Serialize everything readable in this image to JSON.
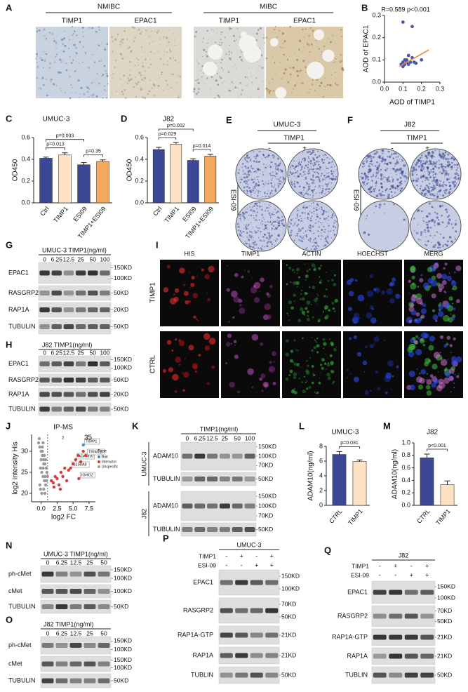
{
  "panel_labels": [
    "A",
    "B",
    "C",
    "D",
    "E",
    "F",
    "G",
    "H",
    "I",
    "J",
    "K",
    "L",
    "M",
    "N",
    "O",
    "P",
    "Q"
  ],
  "chart_data": [
    {
      "type": "scatter",
      "annotation": "R=0.589 p<0.001",
      "xlabel": "AOD of TIMP1",
      "ylabel": "AOD of EPAC1",
      "x": [
        0.1,
        0.15,
        0.13,
        0.15,
        0.12,
        0.1,
        0.11,
        0.09,
        0.1,
        0.12,
        0.14,
        0.16,
        0.13,
        0.17,
        0.11,
        0.2
      ],
      "y": [
        0.27,
        0.25,
        0.12,
        0.11,
        0.1,
        0.09,
        0.08,
        0.08,
        0.07,
        0.09,
        0.09,
        0.09,
        0.08,
        0.085,
        0.1,
        0.1
      ],
      "color": "#4a5aa8",
      "trendline": {
        "x": [
          0.08,
          0.24
        ],
        "y": [
          0.07,
          0.145
        ],
        "color": "#e8863a"
      },
      "xlim": [
        0,
        0.3
      ],
      "ylim": [
        0,
        0.3
      ],
      "xticks": [
        {
          "value": 0,
          "label": "0.0"
        },
        0.1,
        0.2,
        0.3
      ],
      "yticks": [
        {
          "value": 0,
          "label": "0.0"
        },
        0.1,
        0.2,
        0.3
      ]
    },
    {
      "type": "bar",
      "title": "UMUC-3",
      "ylabel": "OD450",
      "categories": [
        "Ctrl",
        "TIMP1",
        "ESI09",
        "TIMP1+ESI09"
      ],
      "values": [
        0.41,
        0.44,
        0.35,
        0.38
      ],
      "errors": [
        0.01,
        0.02,
        0.02,
        0.015
      ],
      "colors": [
        "#3c4796",
        "#fde3c4",
        "#3c4796",
        "#f3a85c"
      ],
      "ylim": [
        0,
        0.6
      ],
      "yticks": [
        {
          "value": 0,
          "label": "0.0"
        },
        0.2,
        0.4,
        0.6
      ],
      "comparisons": [
        {
          "label": "p=0.003",
          "pair": [
            "Ctrl",
            "ESI09"
          ]
        },
        {
          "label": "p=0.013",
          "pair": [
            "Ctrl",
            "TIMP1"
          ]
        },
        {
          "label": "p=0.35",
          "pair": [
            "ESI09",
            "TIMP1+ESI09"
          ]
        }
      ]
    },
    {
      "type": "bar",
      "title": "J82",
      "ylabel": "OD450",
      "categories": [
        "Ctrl",
        "TIMP1",
        "ESI09",
        "TIMP1+ESI09"
      ],
      "values": [
        0.49,
        0.54,
        0.39,
        0.43
      ],
      "errors": [
        0.02,
        0.015,
        0.015,
        0.015
      ],
      "colors": [
        "#3c4796",
        "#fde3c4",
        "#3c4796",
        "#f3a85c"
      ],
      "ylim": [
        0,
        0.6
      ],
      "yticks": [
        {
          "value": 0,
          "label": "0.0"
        },
        0.2,
        0.4,
        0.6
      ],
      "comparisons": [
        {
          "label": "p=0.002",
          "pair": [
            "Ctrl",
            "ESI09"
          ]
        },
        {
          "label": "p=0.029",
          "pair": [
            "Ctrl",
            "TIMP1"
          ]
        },
        {
          "label": "p=0.014",
          "pair": [
            "ESI09",
            "TIMP1+ESI09"
          ]
        }
      ]
    },
    {
      "type": "scatter",
      "title": "IP-MS",
      "xlabel": "log2 FC",
      "ylabel": "log2 intensity His",
      "legend_title": "Type",
      "annotations": [
        "2",
        "35"
      ],
      "vline": 1,
      "xlim": [
        -1.5,
        8.5
      ],
      "ylim": [
        18,
        34
      ],
      "xticks": [
        {
          "value": 0,
          "label": "0.0"
        },
        2.5,
        {
          "value": 5,
          "label": "5.0"
        },
        7.5
      ],
      "yticks": [
        20,
        25,
        30
      ],
      "series": [
        {
          "name": "Bait",
          "color": "#3a8fd6",
          "x": [
            6.6
          ],
          "y": [
            31.5
          ],
          "labels": [
            "TIMP1"
          ]
        },
        {
          "name": "Interactor",
          "color": "#d73a3a",
          "x": [
            1.6,
            1.9,
            2.2,
            2.5,
            2.8,
            3.1,
            3.4,
            3.7,
            4.0,
            4.3,
            4.6,
            5.0,
            5.4,
            5.8,
            6.2,
            6.6,
            7.0,
            2.0,
            3.0,
            5.9
          ],
          "y": [
            23,
            22.5,
            24,
            23.5,
            22,
            25,
            24,
            26,
            23,
            25.5,
            26,
            27,
            28,
            29,
            27.5,
            30,
            29,
            21.5,
            21,
            23.5
          ],
          "labels": [
            null,
            null,
            null,
            null,
            null,
            null,
            null,
            null,
            null,
            null,
            "S100A8",
            null,
            "ADAM10",
            null,
            null,
            null,
            "TRIM21",
            null,
            null,
            "IGHG2"
          ]
        },
        {
          "name": "Unspecific",
          "color": "#9a9a9a",
          "x": [
            -0.4,
            -0.2,
            0,
            0.2,
            0.4,
            0.6,
            0.8,
            -0.3,
            0.1,
            0.3,
            0.5,
            0.7,
            -0.1,
            0.2,
            0.4,
            0.9,
            0,
            0.3,
            0.6,
            -0.2,
            0.1,
            0.5,
            0.8,
            0.2,
            0.4,
            -0.1,
            0.7,
            0.3,
            1.0,
            0.6
          ],
          "y": [
            32,
            31,
            30,
            29,
            28,
            27,
            26,
            33,
            25,
            24,
            23,
            22,
            21,
            30,
            27,
            25,
            28,
            26,
            24,
            22,
            20,
            29,
            23,
            31,
            21,
            26,
            28,
            32,
            24,
            20
          ]
        }
      ]
    },
    {
      "type": "bar",
      "title": "UMUC-3",
      "ylabel": "ADAM10(ng/ml)",
      "categories": [
        "CTRL",
        "TIMP1"
      ],
      "values": [
        6.9,
        5.95
      ],
      "errors": [
        0.4,
        0.2
      ],
      "colors": [
        "#3c4796",
        "#fde3c4"
      ],
      "ylim": [
        0,
        8
      ],
      "yticks": [
        0,
        2,
        4,
        6,
        8
      ],
      "comparisons": [
        {
          "label": "p=0.031",
          "pair": [
            "CTRL",
            "TIMP1"
          ]
        }
      ]
    },
    {
      "type": "bar",
      "title": "J82",
      "ylabel": "ADAM10(ng/ml)",
      "categories": [
        "CTRL",
        "TIMP1"
      ],
      "values": [
        0.76,
        0.33
      ],
      "errors": [
        0.06,
        0.06
      ],
      "colors": [
        "#3c4796",
        "#fde3c4"
      ],
      "ylim": [
        0,
        1
      ],
      "yticks": [
        {
          "value": 0,
          "label": "0.0"
        },
        0.2,
        0.4,
        0.6,
        0.8,
        {
          "value": 1,
          "label": "1.0"
        }
      ],
      "comparisons": [
        {
          "label": "p<0.001",
          "pair": [
            "CTRL",
            "TIMP1"
          ]
        }
      ]
    }
  ],
  "micrographs": {
    "A": {
      "groups": [
        {
          "name": "NMIBC",
          "columns": [
            "TIMP1",
            "EPAC1"
          ]
        },
        {
          "name": "MIBC",
          "columns": [
            "TIMP1",
            "EPAC1"
          ]
        }
      ]
    },
    "E": {
      "title": "UMUC-3",
      "column_treatment": "TIMP1",
      "column_signs": [
        "-",
        "+"
      ],
      "row_treatment": "ESI-09",
      "row_signs": [
        "-",
        "+"
      ]
    },
    "F": {
      "title": "J82",
      "column_treatment": "TIMP1",
      "column_signs": [
        "-",
        "+"
      ],
      "row_treatment": "ESI-09",
      "row_signs": [
        "-",
        "+"
      ]
    },
    "I": {
      "columns": [
        "HIS",
        "TIMP1",
        "ACTIN",
        "HOECHST",
        "MERG"
      ],
      "rows": [
        "TIMP1",
        "CTRL"
      ]
    }
  },
  "blots": {
    "G": {
      "header": "UMUC-3 TIMP1(ng/ml)",
      "lanes": [
        "0",
        "6.25",
        "12.5",
        "25",
        "50",
        "100"
      ],
      "rows": [
        {
          "name": "EPAC1",
          "markers": [
            "150KD",
            "100KD"
          ]
        },
        {
          "name": "RASGRP2",
          "markers": [
            "50KD"
          ]
        },
        {
          "name": "RAP1A",
          "markers": [
            "20KD"
          ]
        },
        {
          "name": "TUBULIN",
          "markers": [
            "50KD"
          ]
        }
      ]
    },
    "H": {
      "header": "J82 TIMP1(ng/ml)",
      "lanes": [
        "0",
        "6.25",
        "12.5",
        "25",
        "50",
        "100"
      ],
      "rows": [
        {
          "name": "EPAC1",
          "markers": [
            "150KD",
            "100KD"
          ]
        },
        {
          "name": "RASGRP2",
          "markers": [
            "50KD"
          ]
        },
        {
          "name": "RAP1A",
          "markers": [
            "20KD"
          ]
        },
        {
          "name": "TUBULIN",
          "markers": [
            "50KD"
          ]
        }
      ]
    },
    "K": {
      "header": "TIMP1(ng/ml)",
      "lanes": [
        "0",
        "6.25",
        "12.5",
        "25",
        "50",
        "100"
      ],
      "groups": [
        {
          "name": "UMUC-3",
          "rows": [
            {
              "name": "ADAM10",
              "markers": [
                "150KD",
                "100KD",
                "70KD"
              ]
            },
            {
              "name": "TUBULIN",
              "markers": [
                "50KD"
              ]
            }
          ]
        },
        {
          "name": "J82",
          "rows": [
            {
              "name": "ADAM10",
              "markers": [
                "150KD",
                "100KD",
                "70KD"
              ]
            },
            {
              "name": "TUBULIN",
              "markers": [
                "50KD"
              ]
            }
          ]
        }
      ]
    },
    "N": {
      "header": "UMUC-3 TIMP1(ng/ml)",
      "lanes": [
        "0",
        "6.25",
        "12.5",
        "25",
        "50"
      ],
      "rows": [
        {
          "name": "ph-cMet",
          "markers": [
            "150KD",
            "100KD"
          ]
        },
        {
          "name": "cMet",
          "markers": [
            "100KD"
          ]
        },
        {
          "name": "TUBULIN",
          "markers": [
            "50KD"
          ]
        }
      ]
    },
    "O": {
      "header": "J82 TIMP1(ng/ml)",
      "lanes": [
        "0",
        "6.25",
        "12.5",
        "25",
        "50"
      ],
      "rows": [
        {
          "name": "ph-cMet",
          "markers": [
            "150KD",
            "100KD"
          ]
        },
        {
          "name": "cMet",
          "markers": [
            "150KD",
            "100KD"
          ]
        },
        {
          "name": "TUBULIN",
          "markers": [
            "50KD"
          ]
        }
      ]
    },
    "P": {
      "header": "UMUC-3",
      "conditions": [
        {
          "name": "TIMP1",
          "signs": [
            "-",
            "+",
            "-",
            "+"
          ]
        },
        {
          "name": "ESI-09",
          "signs": [
            "-",
            "-",
            "+",
            "+"
          ]
        }
      ],
      "rows": [
        {
          "name": "EPAC1",
          "markers": [
            "150KD",
            "100KD"
          ]
        },
        {
          "name": "RASGRP2",
          "markers": [
            "70KD",
            "50KD"
          ]
        },
        {
          "name": "RAP1A-GTP",
          "markers": [
            "21KD"
          ]
        },
        {
          "name": "RAP1A",
          "markers": [
            "21KD"
          ]
        },
        {
          "name": "TUBLIN",
          "markers": [
            "50KD"
          ]
        }
      ]
    },
    "Q": {
      "header": "J82",
      "conditions": [
        {
          "name": "TIMP1",
          "signs": [
            "-",
            "+",
            "-",
            "+"
          ]
        },
        {
          "name": "ESI-09",
          "signs": [
            "-",
            "-",
            "+",
            "+"
          ]
        }
      ],
      "rows": [
        {
          "name": "EPAC1",
          "markers": [
            "150KD",
            "100KD"
          ]
        },
        {
          "name": "RASGRP2",
          "markers": [
            "70KD",
            "50KD"
          ]
        },
        {
          "name": "RAP1A-GTP",
          "markers": [
            "21KD"
          ]
        },
        {
          "name": "RAP1A",
          "markers": [
            "21KD"
          ]
        },
        {
          "name": "TUBLIN",
          "markers": [
            "50KD"
          ]
        }
      ]
    }
  }
}
